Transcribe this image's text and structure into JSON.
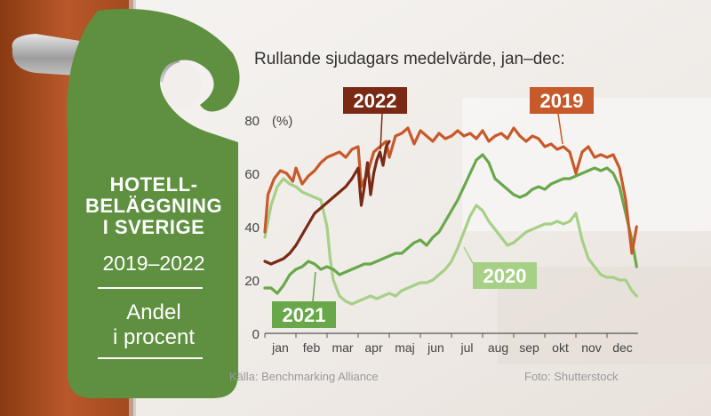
{
  "tag": {
    "title_line1": "HOTELL-",
    "title_line2": "BELÄGGNING",
    "title_line3": "I SVERIGE",
    "years": "2019–2022",
    "sub_line1": "Andel",
    "sub_line2": "i procent"
  },
  "subtitle": "Rullande sjudagars medelvärde, jan–dec:",
  "footer": {
    "source": "Källa: Benchmarking Alliance",
    "photo": "Foto: Shutterstock"
  },
  "colors": {
    "2019": "#c8592a",
    "2020": "#a6d086",
    "2021": "#68a84a",
    "2022": "#7a2a14",
    "tag": "#5e9040",
    "background": "#f2efec"
  },
  "chart_data": {
    "type": "line",
    "ylabel": "(%)",
    "ylim": [
      0,
      80
    ],
    "yticks": [
      0,
      20,
      40,
      60,
      80
    ],
    "xlim": [
      0,
      12
    ],
    "x_ticklabels": [
      "jan",
      "feb",
      "mar",
      "apr",
      "maj",
      "jun",
      "jul",
      "aug",
      "sep",
      "okt",
      "nov",
      "dec"
    ],
    "grid": false,
    "series": [
      {
        "name": "2019",
        "x": [
          0.0,
          0.1,
          0.3,
          0.5,
          0.7,
          0.9,
          1.0,
          1.2,
          1.4,
          1.6,
          1.8,
          2.0,
          2.2,
          2.4,
          2.6,
          2.8,
          3.0,
          3.1,
          3.3,
          3.5,
          3.7,
          3.9,
          4.0,
          4.2,
          4.4,
          4.6,
          4.8,
          5.0,
          5.2,
          5.4,
          5.6,
          5.8,
          6.0,
          6.2,
          6.4,
          6.6,
          6.8,
          7.0,
          7.2,
          7.4,
          7.6,
          7.8,
          8.0,
          8.2,
          8.4,
          8.6,
          8.8,
          9.0,
          9.2,
          9.4,
          9.6,
          9.8,
          10.0,
          10.2,
          10.4,
          10.6,
          10.8,
          11.0,
          11.2,
          11.4,
          11.6,
          11.8,
          11.95
        ],
        "y": [
          38,
          52,
          58,
          61,
          60,
          57,
          62,
          56,
          59,
          61,
          64,
          66,
          67,
          68,
          66,
          69,
          70,
          55,
          60,
          68,
          70,
          72,
          66,
          74,
          75,
          77,
          71,
          76,
          74,
          72,
          75,
          73,
          74,
          76,
          74,
          75,
          73,
          76,
          72,
          74,
          75,
          73,
          77,
          74,
          72,
          74,
          73,
          70,
          71,
          69,
          70,
          68,
          60,
          68,
          70,
          66,
          67,
          66,
          67,
          62,
          50,
          30,
          40
        ]
      },
      {
        "name": "2020",
        "x": [
          0.0,
          0.2,
          0.4,
          0.6,
          0.8,
          1.0,
          1.2,
          1.4,
          1.6,
          1.8,
          2.0,
          2.1,
          2.2,
          2.4,
          2.6,
          2.8,
          3.0,
          3.2,
          3.4,
          3.6,
          3.8,
          4.0,
          4.2,
          4.4,
          4.6,
          4.8,
          5.0,
          5.2,
          5.4,
          5.6,
          5.8,
          6.0,
          6.2,
          6.4,
          6.6,
          6.8,
          7.0,
          7.2,
          7.4,
          7.6,
          7.8,
          8.0,
          8.2,
          8.4,
          8.6,
          8.8,
          9.0,
          9.2,
          9.4,
          9.6,
          9.8,
          10.0,
          10.2,
          10.4,
          10.6,
          10.8,
          11.0,
          11.2,
          11.4,
          11.6,
          11.8,
          11.95
        ],
        "y": [
          36,
          48,
          55,
          58,
          56,
          55,
          53,
          52,
          51,
          50,
          40,
          28,
          20,
          14,
          12,
          11,
          12,
          13,
          14,
          13,
          14,
          15,
          14,
          16,
          17,
          18,
          19,
          19,
          20,
          22,
          24,
          27,
          32,
          38,
          44,
          48,
          46,
          42,
          39,
          36,
          33,
          34,
          36,
          38,
          39,
          40,
          41,
          41,
          42,
          41,
          42,
          45,
          35,
          28,
          25,
          22,
          21,
          21,
          20,
          20,
          16,
          14
        ]
      },
      {
        "name": "2021",
        "x": [
          0.0,
          0.2,
          0.4,
          0.6,
          0.8,
          1.0,
          1.2,
          1.4,
          1.6,
          1.8,
          2.0,
          2.2,
          2.4,
          2.6,
          2.8,
          3.0,
          3.2,
          3.4,
          3.6,
          3.8,
          4.0,
          4.2,
          4.4,
          4.6,
          4.8,
          5.0,
          5.2,
          5.4,
          5.6,
          5.8,
          6.0,
          6.2,
          6.4,
          6.6,
          6.8,
          7.0,
          7.2,
          7.4,
          7.6,
          7.8,
          8.0,
          8.2,
          8.4,
          8.6,
          8.8,
          9.0,
          9.2,
          9.4,
          9.6,
          9.8,
          10.0,
          10.2,
          10.4,
          10.6,
          10.8,
          11.0,
          11.2,
          11.4,
          11.6,
          11.8,
          11.95
        ],
        "y": [
          17,
          17,
          15,
          18,
          22,
          24,
          25,
          27,
          26,
          24,
          25,
          24,
          22,
          23,
          24,
          25,
          26,
          26,
          27,
          28,
          29,
          30,
          30,
          32,
          34,
          35,
          33,
          36,
          38,
          42,
          46,
          50,
          55,
          60,
          65,
          67,
          64,
          58,
          56,
          54,
          52,
          51,
          52,
          54,
          55,
          54,
          56,
          57,
          58,
          58,
          59,
          60,
          61,
          62,
          61,
          62,
          60,
          55,
          45,
          35,
          25
        ]
      },
      {
        "name": "2022",
        "x": [
          0.0,
          0.2,
          0.4,
          0.6,
          0.8,
          1.0,
          1.2,
          1.4,
          1.6,
          1.8,
          2.0,
          2.2,
          2.4,
          2.6,
          2.8,
          3.0,
          3.1,
          3.2,
          3.3,
          3.4,
          3.5,
          3.6,
          3.7,
          3.8,
          3.9,
          4.0
        ],
        "y": [
          27,
          26,
          27,
          28,
          30,
          33,
          37,
          41,
          45,
          47,
          49,
          51,
          53,
          55,
          58,
          62,
          48,
          55,
          64,
          52,
          60,
          65,
          68,
          63,
          70,
          72
        ]
      }
    ],
    "labels": [
      {
        "text": "2022",
        "series": "2022"
      },
      {
        "text": "2019",
        "series": "2019"
      },
      {
        "text": "2020",
        "series": "2020"
      },
      {
        "text": "2021",
        "series": "2021"
      }
    ]
  }
}
